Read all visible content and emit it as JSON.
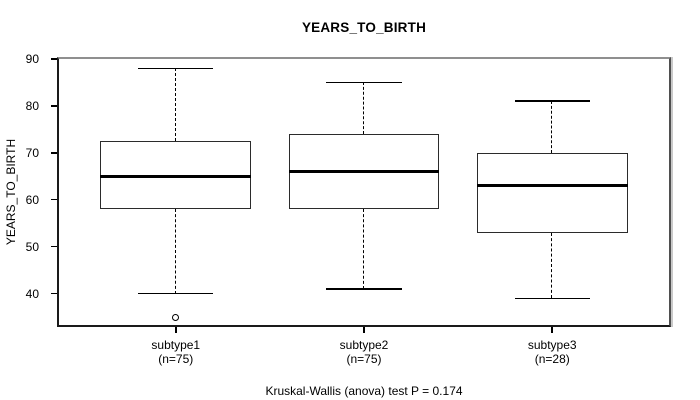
{
  "chart_data": {
    "type": "boxplot",
    "title": "YEARS_TO_BIRTH",
    "ylabel": "YEARS_TO_BIRTH",
    "footer": "Kruskal-Wallis (anova) test P = 0.174",
    "yticks": [
      90,
      80,
      70,
      60,
      50,
      40
    ],
    "ylim": [
      33.3,
      90
    ],
    "grid": false,
    "legend": "none",
    "groups": [
      {
        "label": "subtype1",
        "sublabel": "(n=75)",
        "n": 75,
        "whisker_low": 40,
        "q1": 58,
        "median": 65,
        "q3": 72.5,
        "whisker_high": 88,
        "outliers": [
          35
        ]
      },
      {
        "label": "subtype2",
        "sublabel": "(n=75)",
        "n": 75,
        "whisker_low": 41,
        "q1": 58,
        "median": 66,
        "q3": 74,
        "whisker_high": 85,
        "outliers": []
      },
      {
        "label": "subtype3",
        "sublabel": "(n=28)",
        "n": 28,
        "whisker_low": 39,
        "q1": 53,
        "median": 63,
        "q3": 70,
        "whisker_high": 81,
        "outliers": []
      }
    ],
    "colors": {
      "box_border": "#2b2b2b",
      "median": "#000000",
      "whisker": "#000000",
      "frame_top": "#8f8f8f",
      "frame_dark": "#1a1a1a",
      "text": "#000000",
      "background": "#ffffff"
    }
  }
}
